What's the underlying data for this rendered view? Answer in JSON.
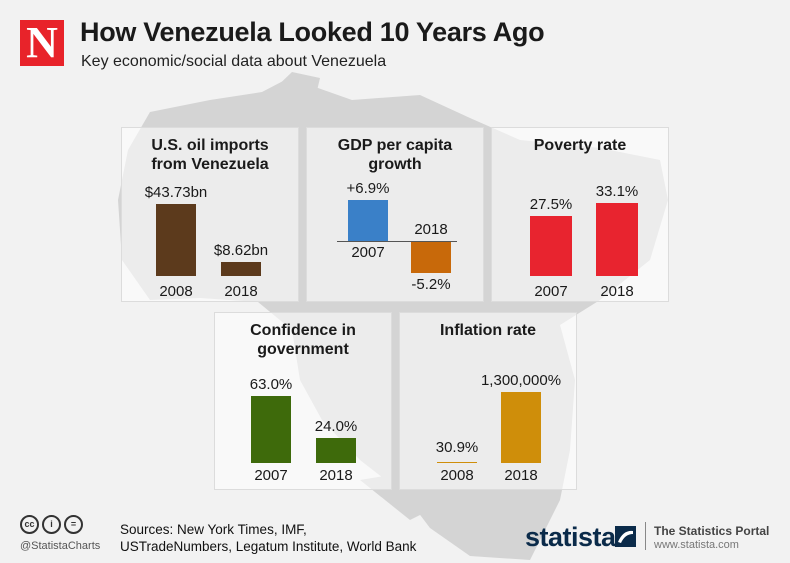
{
  "header": {
    "logo_letter": "N",
    "title": "How Venezuela Looked 10 Years Ago",
    "subtitle": "Key economic/social data about Venezuela"
  },
  "colors": {
    "oil": "#5c3a1c",
    "gdp_pos": "#3a80c8",
    "gdp_neg": "#c8690a",
    "poverty": "#e8242f",
    "confidence": "#3e6a0b",
    "inflation": "#cf8e0a",
    "brand_red": "#e8232a",
    "statista_navy": "#0b2b4a"
  },
  "chart_data": [
    {
      "type": "bar",
      "title": "U.S. oil imports\nfrom Venezuela",
      "categories": [
        "2008",
        "2018"
      ],
      "values": [
        43.73,
        8.62
      ],
      "value_labels": [
        "$43.73bn",
        "$8.62bn"
      ],
      "unit": "bn USD",
      "ylim": [
        0,
        45
      ]
    },
    {
      "type": "bar",
      "title": "GDP per capita\ngrowth",
      "categories": [
        "2007",
        "2018"
      ],
      "values": [
        6.9,
        -5.2
      ],
      "value_labels": [
        "+6.9%",
        "-5.2%"
      ],
      "unit": "%",
      "ylim": [
        -6,
        7
      ]
    },
    {
      "type": "bar",
      "title": "Poverty rate",
      "categories": [
        "2007",
        "2018"
      ],
      "values": [
        27.5,
        33.1
      ],
      "value_labels": [
        "27.5%",
        "33.1%"
      ],
      "unit": "%",
      "ylim": [
        0,
        35
      ]
    },
    {
      "type": "bar",
      "title": "Confidence in\ngovernment",
      "categories": [
        "2007",
        "2018"
      ],
      "values": [
        63.0,
        24.0
      ],
      "value_labels": [
        "63.0%",
        "24.0%"
      ],
      "unit": "%",
      "ylim": [
        0,
        65
      ]
    },
    {
      "type": "bar",
      "title": "Inflation rate",
      "categories": [
        "2008",
        "2018"
      ],
      "values": [
        30.9,
        1300000
      ],
      "value_labels": [
        "30.9%",
        "1,300,000%"
      ],
      "unit": "%",
      "ylim": [
        0,
        1300000
      ]
    }
  ],
  "footer": {
    "handle": "@StatistaCharts",
    "sources": "Sources: New York Times, IMF,\nUSTradeNumbers, Legatum Institute, World Bank",
    "brand": "statista",
    "portal": "The Statistics Portal",
    "portal_url": "www.statista.com",
    "license_icons": [
      "cc",
      "i",
      "="
    ]
  }
}
